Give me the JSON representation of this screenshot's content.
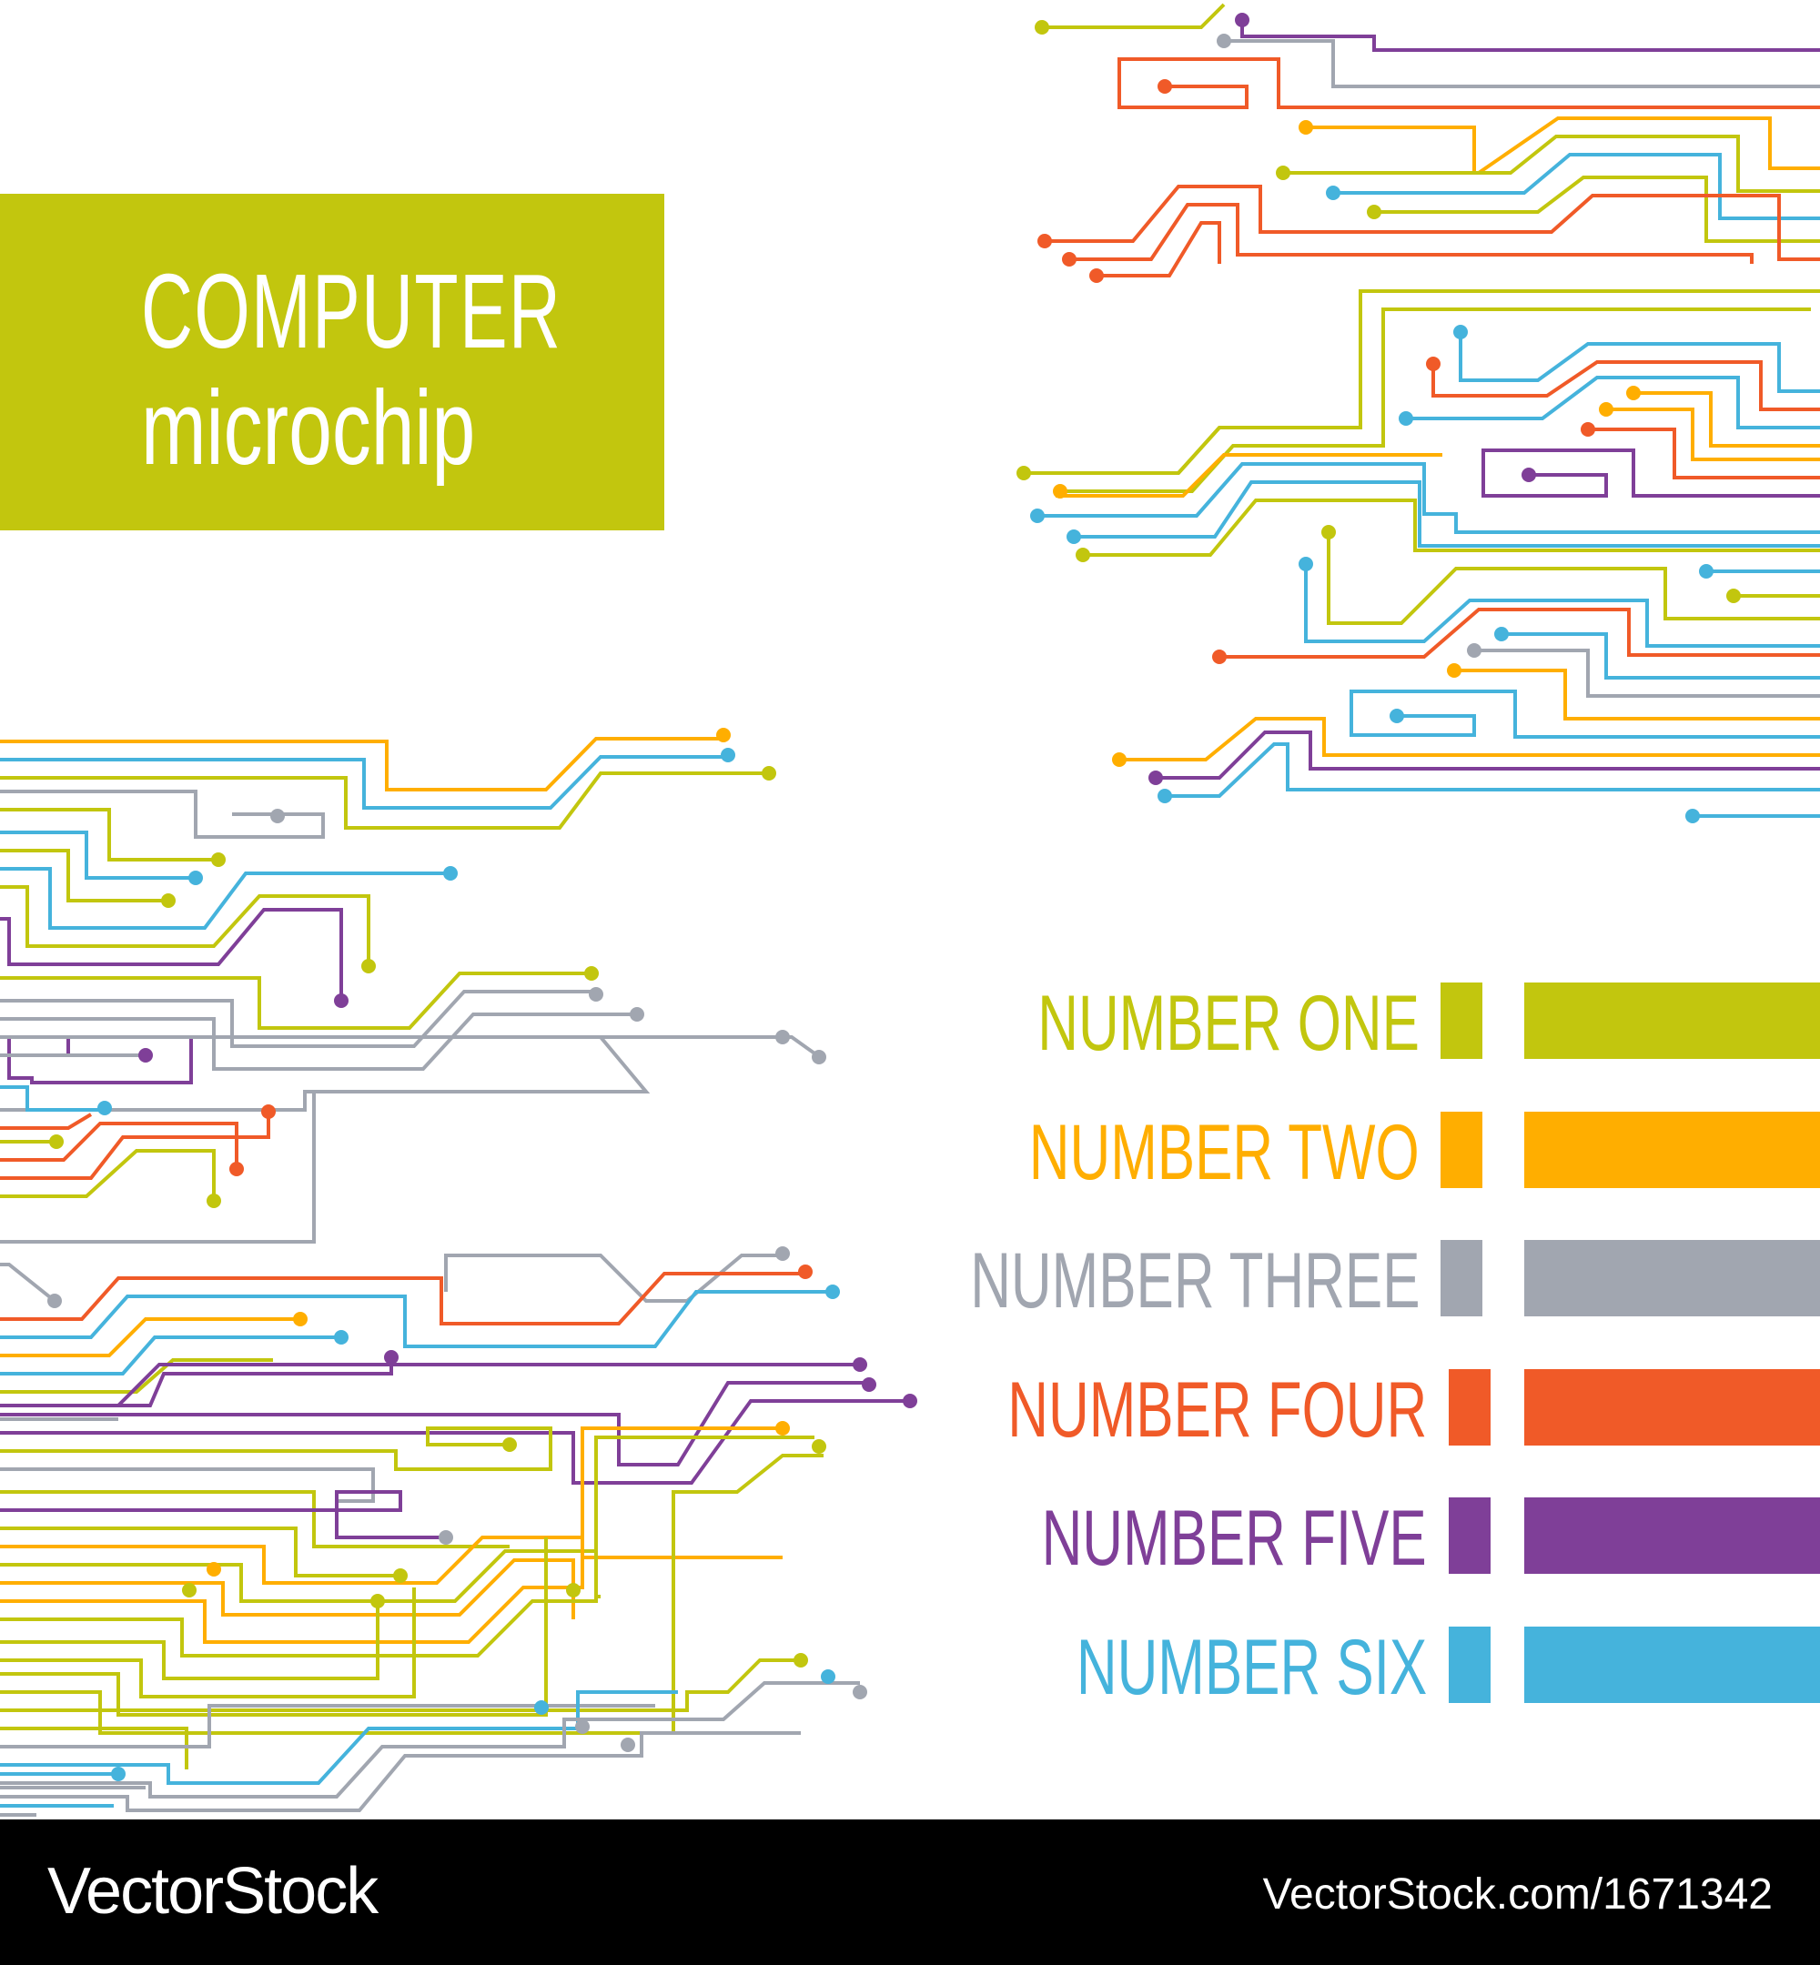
{
  "colors": {
    "olive": "#c2c60e",
    "orange": "#ffae00",
    "gray": "#a1a6b0",
    "red": "#f05a28",
    "purple": "#7f3f98",
    "blue": "#45b3dc",
    "footer_bg": "#000000",
    "white": "#ffffff"
  },
  "title": {
    "line1": "COMPUTER",
    "line2": "microchip"
  },
  "legend": [
    {
      "label": "NUMBER ONE",
      "color": "#c2c60e"
    },
    {
      "label": "NUMBER TWO",
      "color": "#ffae00"
    },
    {
      "label": "NUMBER THREE",
      "color": "#a1a6b0"
    },
    {
      "label": "NUMBER FOUR",
      "color": "#f05a28"
    },
    {
      "label": "NUMBER FIVE",
      "color": "#7f3f98"
    },
    {
      "label": "NUMBER SIX",
      "color": "#45b3dc"
    }
  ],
  "footer": {
    "brand": "VectorStock",
    "url": "VectorStock.com/1671342"
  }
}
